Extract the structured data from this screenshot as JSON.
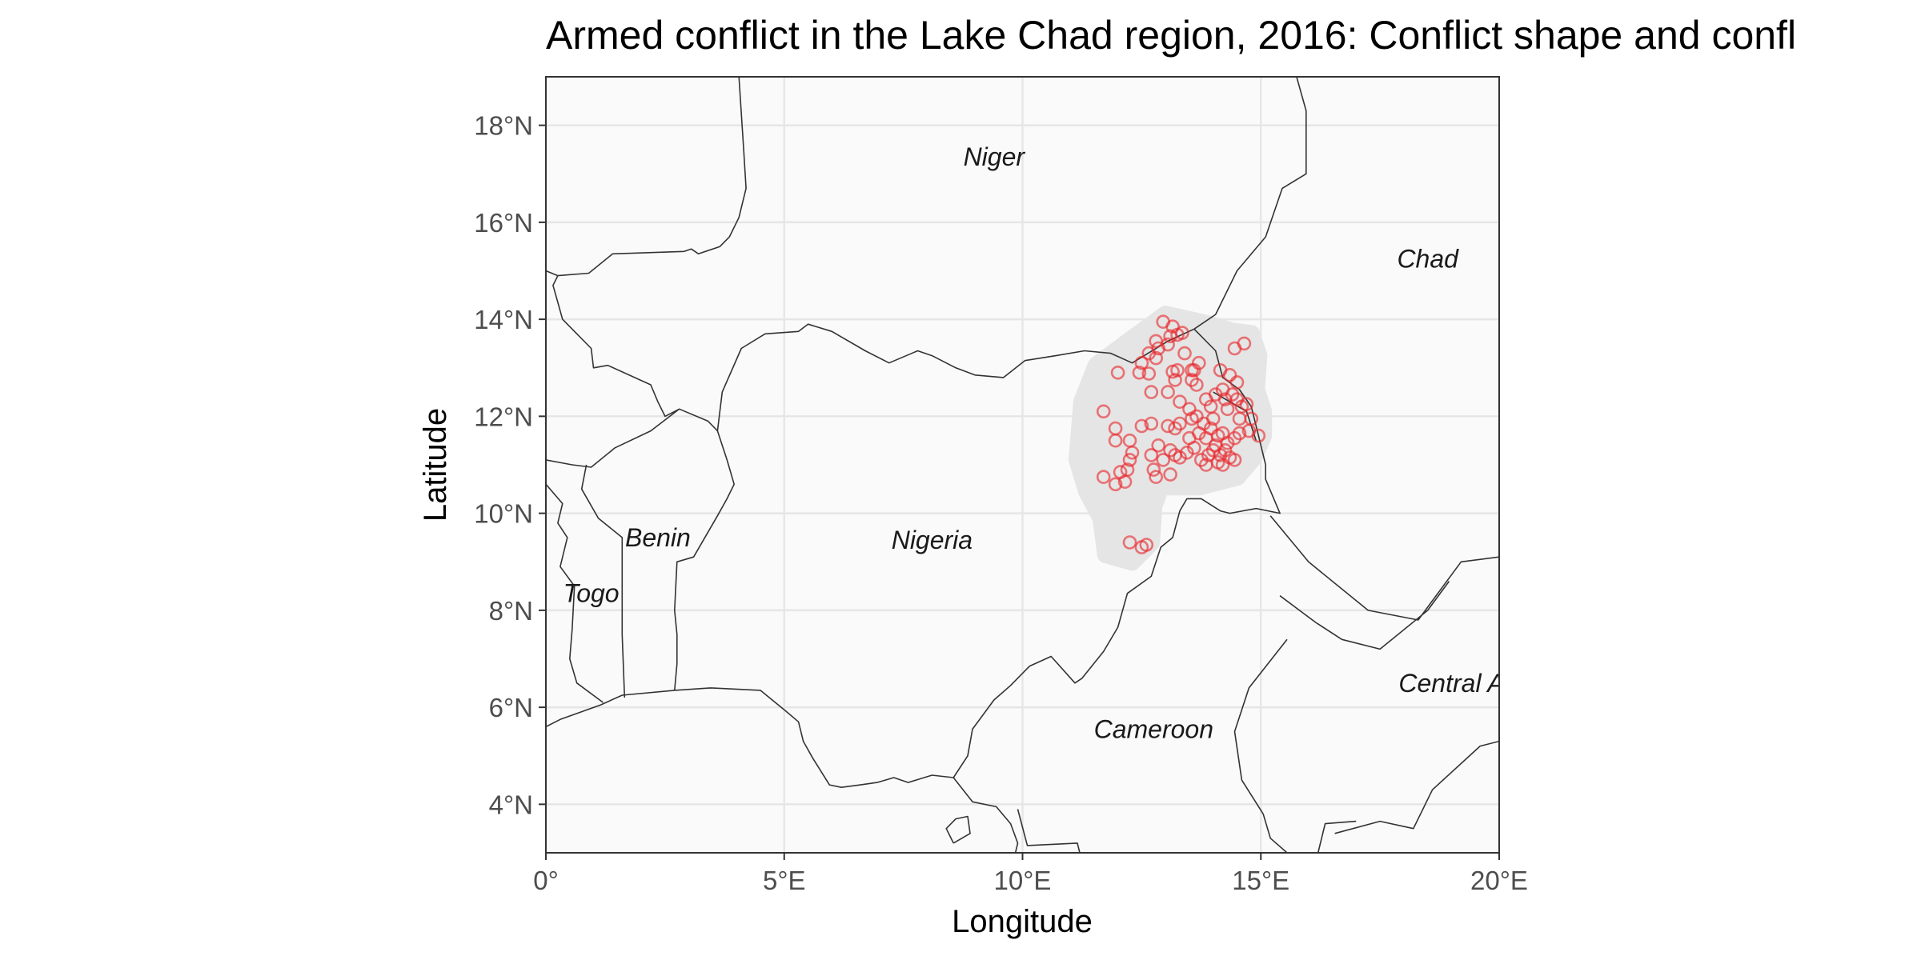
{
  "title": "Armed conflict in the Lake Chad region, 2016: Conflict shape and confl",
  "x_axis": {
    "label": "Longitude",
    "ticks": [
      {
        "value": 0,
        "label": "0°"
      },
      {
        "value": 5,
        "label": "5°E"
      },
      {
        "value": 10,
        "label": "10°E"
      },
      {
        "value": 15,
        "label": "15°E"
      },
      {
        "value": 20,
        "label": "20°E"
      }
    ],
    "range": [
      0,
      20
    ]
  },
  "y_axis": {
    "label": "Latitude",
    "ticks": [
      {
        "value": 4,
        "label": "4°N"
      },
      {
        "value": 6,
        "label": "6°N"
      },
      {
        "value": 8,
        "label": "8°N"
      },
      {
        "value": 10,
        "label": "10°N"
      },
      {
        "value": 12,
        "label": "12°N"
      },
      {
        "value": 14,
        "label": "14°N"
      },
      {
        "value": 16,
        "label": "16°N"
      },
      {
        "value": 18,
        "label": "18°N"
      }
    ],
    "range": [
      3,
      19
    ]
  },
  "country_labels": [
    {
      "name": "Niger",
      "lon": 9.4,
      "lat": 17.35
    },
    {
      "name": "Chad",
      "lon": 18.5,
      "lat": 15.25
    },
    {
      "name": "Benin",
      "lon": 2.35,
      "lat": 9.5
    },
    {
      "name": "Nigeria",
      "lon": 8.1,
      "lat": 9.45
    },
    {
      "name": "Togo",
      "lon": 0.95,
      "lat": 8.35
    },
    {
      "name": "Cameroon",
      "lon": 12.75,
      "lat": 5.55
    },
    {
      "name": "Central A",
      "lon": 19.0,
      "lat": 6.5
    }
  ],
  "colors": {
    "panel_background": "#fafafa",
    "conflict_shape": "#e5e5e5",
    "conflict_events": "#e8282d",
    "borders": "#333333",
    "gridlines": "#e6e6e6"
  },
  "conflict_shape": [
    [
      12.3,
      13.6
    ],
    [
      13.0,
      14.1
    ],
    [
      13.9,
      13.9
    ],
    [
      14.4,
      13.75
    ],
    [
      14.8,
      13.7
    ],
    [
      14.95,
      13.25
    ],
    [
      14.9,
      12.55
    ],
    [
      15.05,
      12.1
    ],
    [
      15.05,
      11.6
    ],
    [
      14.85,
      11.15
    ],
    [
      14.5,
      10.75
    ],
    [
      13.7,
      10.55
    ],
    [
      12.9,
      10.55
    ],
    [
      12.75,
      10.15
    ],
    [
      12.7,
      9.4
    ],
    [
      12.3,
      9.0
    ],
    [
      11.75,
      9.15
    ],
    [
      11.65,
      9.9
    ],
    [
      11.35,
      10.45
    ],
    [
      11.15,
      11.1
    ],
    [
      11.25,
      12.3
    ],
    [
      11.55,
      13.05
    ]
  ],
  "conflict_events": [
    [
      12.95,
      13.95
    ],
    [
      13.15,
      13.85
    ],
    [
      13.35,
      13.72
    ],
    [
      13.1,
      13.65
    ],
    [
      13.25,
      13.68
    ],
    [
      12.8,
      13.55
    ],
    [
      12.85,
      13.4
    ],
    [
      12.65,
      13.3
    ],
    [
      12.5,
      13.1
    ],
    [
      12.8,
      13.2
    ],
    [
      13.05,
      13.48
    ],
    [
      13.4,
      13.3
    ],
    [
      13.7,
      13.1
    ],
    [
      13.55,
      12.95
    ],
    [
      13.15,
      12.92
    ],
    [
      13.2,
      12.75
    ],
    [
      13.55,
      12.75
    ],
    [
      13.65,
      12.65
    ],
    [
      13.05,
      12.5
    ],
    [
      12.7,
      12.5
    ],
    [
      12.45,
      12.9
    ],
    [
      12.65,
      12.88
    ],
    [
      12.0,
      12.9
    ],
    [
      13.3,
      12.3
    ],
    [
      13.5,
      12.15
    ],
    [
      13.65,
      12.0
    ],
    [
      13.85,
      12.35
    ],
    [
      13.95,
      12.2
    ],
    [
      14.05,
      12.45
    ],
    [
      14.2,
      12.55
    ],
    [
      14.35,
      12.85
    ],
    [
      14.5,
      12.7
    ],
    [
      14.4,
      12.45
    ],
    [
      14.25,
      12.35
    ],
    [
      14.5,
      12.35
    ],
    [
      14.6,
      12.2
    ],
    [
      14.7,
      12.25
    ],
    [
      14.3,
      12.15
    ],
    [
      14.0,
      11.95
    ],
    [
      13.8,
      11.85
    ],
    [
      13.55,
      11.95
    ],
    [
      13.3,
      11.85
    ],
    [
      13.2,
      11.75
    ],
    [
      13.05,
      11.8
    ],
    [
      12.7,
      11.85
    ],
    [
      12.5,
      11.8
    ],
    [
      11.95,
      11.75
    ],
    [
      11.95,
      11.5
    ],
    [
      11.7,
      12.1
    ],
    [
      12.25,
      11.5
    ],
    [
      12.85,
      11.4
    ],
    [
      13.1,
      11.3
    ],
    [
      13.3,
      11.15
    ],
    [
      13.45,
      11.25
    ],
    [
      13.6,
      11.35
    ],
    [
      13.75,
      11.1
    ],
    [
      13.9,
      11.2
    ],
    [
      13.85,
      11.0
    ],
    [
      14.0,
      11.3
    ],
    [
      14.1,
      11.05
    ],
    [
      14.15,
      11.2
    ],
    [
      14.25,
      11.3
    ],
    [
      14.35,
      11.15
    ],
    [
      14.2,
      11.0
    ],
    [
      14.45,
      11.1
    ],
    [
      14.3,
      11.45
    ],
    [
      14.45,
      11.55
    ],
    [
      14.1,
      11.6
    ],
    [
      13.85,
      11.55
    ],
    [
      14.55,
      11.65
    ],
    [
      14.75,
      11.7
    ],
    [
      14.8,
      11.95
    ],
    [
      14.55,
      11.95
    ],
    [
      13.5,
      11.55
    ],
    [
      13.7,
      11.65
    ],
    [
      12.95,
      11.1
    ],
    [
      12.7,
      11.2
    ],
    [
      12.3,
      11.25
    ],
    [
      12.25,
      11.1
    ],
    [
      12.2,
      10.9
    ],
    [
      12.05,
      10.85
    ],
    [
      12.15,
      10.65
    ],
    [
      11.95,
      10.6
    ],
    [
      11.7,
      10.75
    ],
    [
      12.75,
      10.9
    ],
    [
      12.8,
      10.75
    ],
    [
      13.1,
      10.8
    ],
    [
      13.2,
      11.2
    ],
    [
      14.45,
      13.4
    ],
    [
      14.65,
      13.5
    ],
    [
      12.25,
      9.4
    ],
    [
      12.5,
      9.3
    ],
    [
      12.6,
      9.35
    ],
    [
      14.95,
      11.6
    ],
    [
      13.95,
      11.75
    ],
    [
      14.05,
      11.4
    ],
    [
      14.2,
      11.65
    ],
    [
      13.6,
      12.95
    ],
    [
      13.25,
      12.95
    ],
    [
      14.15,
      12.95
    ]
  ],
  "borders": [
    [
      [
        4.05,
        19.0
      ],
      [
        4.15,
        17.5
      ],
      [
        4.2,
        16.7
      ],
      [
        4.05,
        16.1
      ],
      [
        3.85,
        15.7
      ],
      [
        3.65,
        15.5
      ],
      [
        3.2,
        15.35
      ],
      [
        3.05,
        15.45
      ],
      [
        2.9,
        15.4
      ],
      [
        1.4,
        15.35
      ],
      [
        0.9,
        14.95
      ],
      [
        0.25,
        14.9
      ],
      [
        0.15,
        14.7
      ],
      [
        0.25,
        14.35
      ],
      [
        0.35,
        14.0
      ],
      [
        0.65,
        13.7
      ],
      [
        0.95,
        13.4
      ],
      [
        1.0,
        13.0
      ],
      [
        1.3,
        13.05
      ],
      [
        2.2,
        12.65
      ],
      [
        2.35,
        12.3
      ],
      [
        2.5,
        12.0
      ],
      [
        2.8,
        12.15
      ],
      [
        3.4,
        11.9
      ],
      [
        3.6,
        11.7
      ],
      [
        3.8,
        11.1
      ],
      [
        3.95,
        10.6
      ],
      [
        3.8,
        10.3
      ],
      [
        3.6,
        9.95
      ],
      [
        3.1,
        9.1
      ],
      [
        2.75,
        9.0
      ],
      [
        2.7,
        8.0
      ],
      [
        2.75,
        7.5
      ],
      [
        2.75,
        6.9
      ],
      [
        2.7,
        6.35
      ]
    ],
    [
      [
        3.6,
        11.7
      ],
      [
        3.7,
        12.5
      ],
      [
        4.1,
        13.4
      ],
      [
        4.6,
        13.7
      ],
      [
        5.3,
        13.75
      ],
      [
        5.5,
        13.9
      ],
      [
        6.0,
        13.75
      ],
      [
        6.7,
        13.35
      ],
      [
        7.2,
        13.1
      ],
      [
        7.8,
        13.35
      ],
      [
        8.1,
        13.25
      ],
      [
        8.6,
        13.0
      ],
      [
        9.0,
        12.85
      ],
      [
        9.6,
        12.8
      ],
      [
        10.05,
        13.15
      ],
      [
        10.7,
        13.25
      ],
      [
        11.3,
        13.35
      ],
      [
        11.85,
        13.3
      ],
      [
        12.3,
        13.1
      ],
      [
        13.05,
        13.55
      ],
      [
        13.6,
        13.8
      ]
    ],
    [
      [
        13.6,
        13.8
      ],
      [
        14.05,
        14.1
      ],
      [
        14.5,
        15.0
      ],
      [
        15.1,
        15.7
      ],
      [
        15.45,
        16.7
      ],
      [
        15.95,
        17.0
      ],
      [
        15.95,
        18.3
      ],
      [
        15.75,
        19.0
      ]
    ],
    [
      [
        13.6,
        13.8
      ],
      [
        14.05,
        13.35
      ],
      [
        14.2,
        12.8
      ],
      [
        14.55,
        12.55
      ],
      [
        14.8,
        12.2
      ],
      [
        14.95,
        11.6
      ],
      [
        15.1,
        11.0
      ],
      [
        15.1,
        10.7
      ],
      [
        15.4,
        10.0
      ],
      [
        14.9,
        10.1
      ],
      [
        14.35,
        10.0
      ],
      [
        14.15,
        10.05
      ],
      [
        13.75,
        10.3
      ],
      [
        13.45,
        10.3
      ],
      [
        13.3,
        10.05
      ],
      [
        13.15,
        9.5
      ],
      [
        12.9,
        9.3
      ],
      [
        12.7,
        8.7
      ],
      [
        12.2,
        8.35
      ],
      [
        12.0,
        7.65
      ],
      [
        11.7,
        7.15
      ],
      [
        11.25,
        6.6
      ],
      [
        11.1,
        6.5
      ],
      [
        10.6,
        7.05
      ],
      [
        10.15,
        6.85
      ],
      [
        9.75,
        6.45
      ],
      [
        9.4,
        6.15
      ],
      [
        8.95,
        5.55
      ],
      [
        8.85,
        5.0
      ],
      [
        8.55,
        4.55
      ]
    ],
    [
      [
        14.0,
        12.5
      ],
      [
        14.7,
        12.1
      ],
      [
        14.9,
        11.5
      ]
    ],
    [
      [
        13.85,
        3.0
      ],
      [
        13.35,
        3.0
      ],
      [
        11.2,
        3.0
      ],
      [
        11.15,
        3.2
      ],
      [
        10.1,
        3.15
      ],
      [
        9.9,
        3.9
      ]
    ],
    [
      [
        15.2,
        9.95
      ],
      [
        16.0,
        9.0
      ],
      [
        17.25,
        8.0
      ],
      [
        18.3,
        7.8
      ],
      [
        19.2,
        9.0
      ],
      [
        20.0,
        9.1
      ]
    ],
    [
      [
        15.4,
        8.3
      ],
      [
        16.15,
        7.75
      ],
      [
        16.7,
        7.4
      ],
      [
        17.5,
        7.2
      ],
      [
        18.5,
        8.0
      ],
      [
        18.95,
        8.6
      ]
    ],
    [
      [
        15.55,
        7.4
      ],
      [
        14.75,
        6.4
      ],
      [
        14.45,
        5.5
      ],
      [
        14.6,
        4.5
      ],
      [
        15.05,
        3.8
      ],
      [
        15.2,
        3.3
      ],
      [
        15.55,
        3.0
      ]
    ],
    [
      [
        16.55,
        3.4
      ],
      [
        17.5,
        3.65
      ],
      [
        18.2,
        3.5
      ],
      [
        18.6,
        4.3
      ],
      [
        19.6,
        5.2
      ],
      [
        20.0,
        5.3
      ]
    ],
    [
      [
        16.2,
        3.0
      ],
      [
        16.35,
        3.6
      ],
      [
        17.0,
        3.65
      ]
    ],
    [
      [
        0.0,
        15.0
      ],
      [
        0.25,
        14.9
      ]
    ],
    [
      [
        0.0,
        11.1
      ],
      [
        0.55,
        11.0
      ],
      [
        0.95,
        10.95
      ],
      [
        1.45,
        11.35
      ],
      [
        2.2,
        11.7
      ],
      [
        2.8,
        12.15
      ]
    ],
    [
      [
        0.0,
        10.6
      ],
      [
        0.35,
        10.2
      ],
      [
        0.25,
        9.8
      ],
      [
        0.45,
        9.5
      ],
      [
        0.3,
        8.9
      ],
      [
        0.6,
        8.5
      ],
      [
        0.55,
        7.6
      ],
      [
        0.5,
        7.0
      ],
      [
        0.65,
        6.5
      ],
      [
        1.2,
        6.1
      ]
    ],
    [
      [
        0.85,
        11.0
      ],
      [
        0.75,
        10.5
      ],
      [
        1.1,
        9.9
      ],
      [
        1.6,
        9.5
      ],
      [
        1.6,
        8.9
      ],
      [
        1.6,
        7.5
      ],
      [
        1.65,
        6.2
      ]
    ],
    [
      [
        0.0,
        5.6
      ],
      [
        0.3,
        5.75
      ],
      [
        1.15,
        6.05
      ],
      [
        1.6,
        6.25
      ],
      [
        2.7,
        6.35
      ],
      [
        3.45,
        6.4
      ],
      [
        4.5,
        6.35
      ],
      [
        5.0,
        5.95
      ],
      [
        5.3,
        5.7
      ],
      [
        5.4,
        5.3
      ],
      [
        5.6,
        4.95
      ],
      [
        5.95,
        4.4
      ],
      [
        6.2,
        4.35
      ],
      [
        6.6,
        4.4
      ],
      [
        6.95,
        4.45
      ],
      [
        7.3,
        4.55
      ],
      [
        7.6,
        4.45
      ],
      [
        8.1,
        4.6
      ],
      [
        8.55,
        4.55
      ],
      [
        8.95,
        4.05
      ],
      [
        9.45,
        3.95
      ],
      [
        9.75,
        3.6
      ],
      [
        9.9,
        3.2
      ],
      [
        9.85,
        3.0
      ]
    ],
    [
      [
        8.55,
        3.2
      ],
      [
        8.9,
        3.4
      ],
      [
        8.85,
        3.75
      ],
      [
        8.6,
        3.7
      ],
      [
        8.4,
        3.5
      ],
      [
        8.55,
        3.2
      ]
    ],
    [
      [
        20.0,
        6.6
      ],
      [
        20.0,
        7.1
      ]
    ],
    [
      [
        20.0,
        9.1
      ],
      [
        20.0,
        10.0
      ]
    ]
  ]
}
